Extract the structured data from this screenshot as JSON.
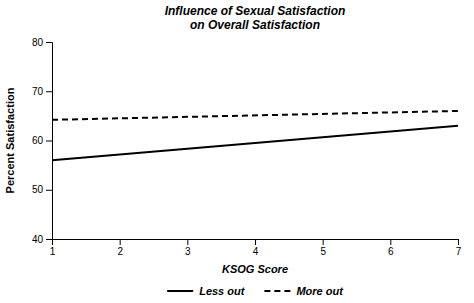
{
  "chart_data": {
    "type": "line",
    "title": "Influence of Sexual Satisfaction\non Overall Satisfaction",
    "xlabel": "KSOG Score",
    "ylabel": "Percent Satisfaction",
    "x": [
      1,
      7
    ],
    "series": [
      {
        "name": "Less out",
        "color": "#000000",
        "line_style": "solid",
        "values": [
          56.0,
          63.0
        ]
      },
      {
        "name": "More out",
        "color": "#000000",
        "line_style": "dashed",
        "values": [
          64.2,
          66.0
        ]
      }
    ],
    "xlim": [
      1,
      7
    ],
    "ylim": [
      40,
      80
    ],
    "xticks": [
      1,
      2,
      3,
      4,
      5,
      6,
      7
    ],
    "yticks": [
      40,
      50,
      60,
      70,
      80
    ],
    "grid": false,
    "legend": "bottom"
  }
}
